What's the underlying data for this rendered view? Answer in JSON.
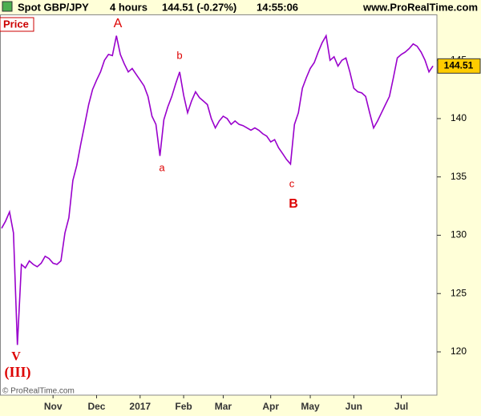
{
  "chart_data": {
    "type": "line",
    "header": {
      "instrument": "Spot GBP/JPY",
      "timeframe": "4 hours",
      "change": "144.51 (-0.27%)",
      "time": "14:55:06",
      "site": "www.ProRealTime.com"
    },
    "panel_label": "Price",
    "copyright": "© ProRealTime.com",
    "last_value": 144.51,
    "annotations": [
      "A",
      "a",
      "b",
      "c",
      "B",
      "V",
      "(III)"
    ],
    "categories": [
      null,
      null,
      null,
      null,
      null,
      null,
      null,
      null,
      null,
      null,
      null,
      null,
      null,
      "Nov",
      null,
      null,
      null,
      null,
      null,
      null,
      null,
      null,
      null,
      null,
      "Dec",
      null,
      null,
      null,
      null,
      null,
      null,
      null,
      null,
      null,
      null,
      "2017",
      null,
      null,
      null,
      null,
      null,
      null,
      null,
      null,
      null,
      null,
      "Feb",
      null,
      null,
      null,
      null,
      null,
      null,
      null,
      null,
      null,
      "Mar",
      null,
      null,
      null,
      null,
      null,
      null,
      null,
      null,
      null,
      null,
      null,
      "Apr",
      null,
      null,
      null,
      null,
      null,
      null,
      null,
      null,
      null,
      "May",
      null,
      null,
      null,
      null,
      null,
      null,
      null,
      null,
      null,
      null,
      "Jun",
      null,
      null,
      null,
      null,
      null,
      null,
      null,
      null,
      null,
      null,
      null,
      "Jul",
      null,
      null,
      null,
      null,
      null,
      null,
      null,
      null
    ],
    "series": [
      {
        "name": "GBP/JPY",
        "color": "#9900cc",
        "values": [
          130.6,
          131.2,
          132,
          130.2,
          120.6,
          127.5,
          127.2,
          127.8,
          127.5,
          127.3,
          127.6,
          128.2,
          128,
          127.6,
          127.5,
          127.8,
          130.2,
          131.5,
          134.7,
          136,
          137.8,
          139.5,
          141.2,
          142.5,
          143.3,
          144,
          145,
          145.5,
          145.4,
          147.1,
          145.5,
          144.7,
          144,
          144.3,
          143.8,
          143.3,
          142.8,
          141.9,
          140.2,
          139.5,
          136.8,
          139.9,
          141,
          141.9,
          143,
          144,
          142,
          140.5,
          141.5,
          142.3,
          141.8,
          141.5,
          141.2,
          140,
          139.2,
          139.8,
          140.2,
          140,
          139.5,
          139.8,
          139.5,
          139.4,
          139.2,
          139,
          139.2,
          139,
          138.7,
          138.5,
          138,
          138.2,
          137.5,
          137,
          136.5,
          136.1,
          139.5,
          140.5,
          142.6,
          143.5,
          144.3,
          144.8,
          145.7,
          146.5,
          147.1,
          145,
          145.3,
          144.5,
          145,
          145.2,
          144,
          142.6,
          142.3,
          142.2,
          141.9,
          140.5,
          139.2,
          139.8,
          140.5,
          141.2,
          141.9,
          143.5,
          145.2,
          145.5,
          145.7,
          146,
          146.4,
          146.2,
          145.7,
          145,
          144,
          144.51
        ]
      }
    ],
    "ylim": [
      116.29,
      148.93
    ],
    "yticks": [
      120,
      125,
      130,
      135,
      140,
      145
    ]
  }
}
